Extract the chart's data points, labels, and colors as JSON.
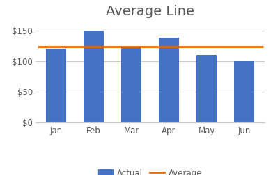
{
  "categories": [
    "Jan",
    "Feb",
    "Mar",
    "Apr",
    "May",
    "Jun"
  ],
  "values": [
    120,
    150,
    123,
    138,
    110,
    100
  ],
  "average": 123.5,
  "bar_color": "#4472C4",
  "line_color": "#E36C09",
  "title": "Average Line",
  "title_fontsize": 14,
  "ylabel_ticks": [
    0,
    50,
    100,
    150
  ],
  "ylim": [
    0,
    165
  ],
  "background_color": "#FFFFFF",
  "grid_color": "#C8C8C8",
  "legend_bar_label": "Actual",
  "legend_line_label": "Average",
  "tick_color": "#595959",
  "spine_color": "#C8C8C8"
}
